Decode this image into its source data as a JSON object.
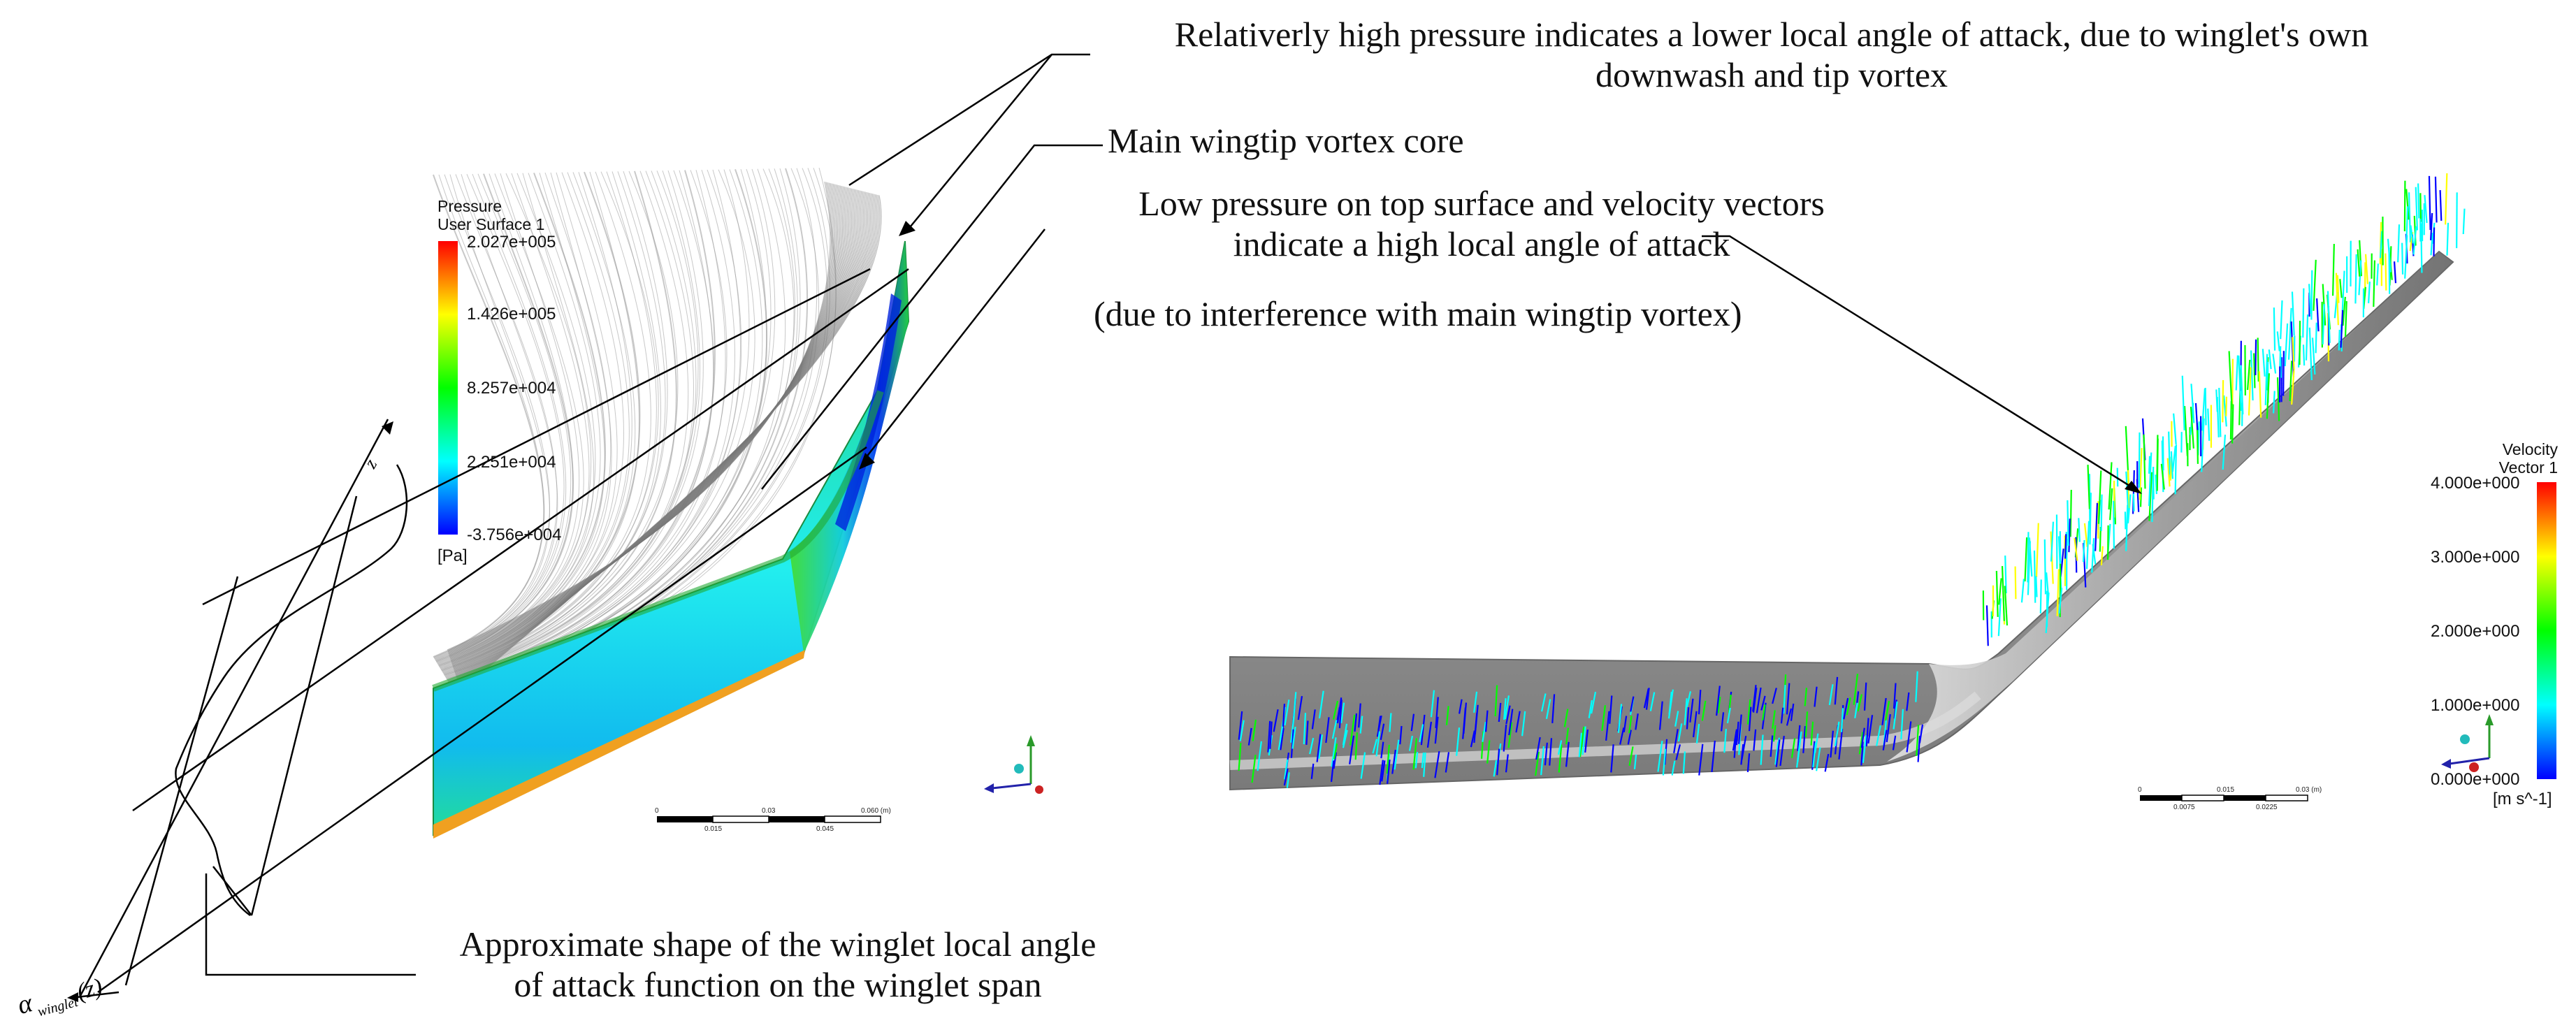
{
  "annotations": {
    "high_pressure_line1": "Relativerly high pressure indicates a lower local angle of attack, due to winglet's own",
    "high_pressure_line2": "downwash and tip vortex",
    "vortex_core": "Main wingtip vortex core",
    "low_pressure_line1": "Low pressure on top surface and velocity vectors",
    "low_pressure_line2": "indicate a high local angle of attack",
    "interference": "(due to interference with main wingtip vortex)",
    "aoa_shape_line1": "Approximate shape of the winglet local angle",
    "aoa_shape_line2": "of attack function on the winglet span",
    "alpha_symbol": "α",
    "alpha_subscript": "winglet",
    "alpha_arg": "(z)",
    "z_axis": "z"
  },
  "pressure_legend": {
    "title_line1": "Pressure",
    "title_line2": "User Surface 1",
    "ticks": [
      "2.027e+005",
      "1.426e+005",
      "8.257e+004",
      "2.251e+004",
      "-3.756e+004"
    ],
    "unit": "[Pa]"
  },
  "velocity_legend": {
    "title_line1": "Velocity",
    "title_line2": "Vector 1",
    "ticks": [
      "4.000e+000",
      "3.000e+000",
      "2.000e+000",
      "1.000e+000",
      "0.000e+000"
    ],
    "unit": "[m s^-1]"
  },
  "scale_left": {
    "top": [
      "0",
      "0.03",
      "0.060 (m)"
    ],
    "bottom": [
      "0.015",
      "0.045"
    ]
  },
  "scale_right": {
    "top": [
      "0",
      "0.015",
      "0.03 (m)"
    ],
    "bottom": [
      "0.0075",
      "0.0225"
    ]
  },
  "colors": {
    "jet": [
      "#0000ff",
      "#00ffff",
      "#00ff00",
      "#ffff00",
      "#ff0000"
    ],
    "streamline": "#9a9a9a",
    "wing_grey": "#8a8a8a"
  }
}
